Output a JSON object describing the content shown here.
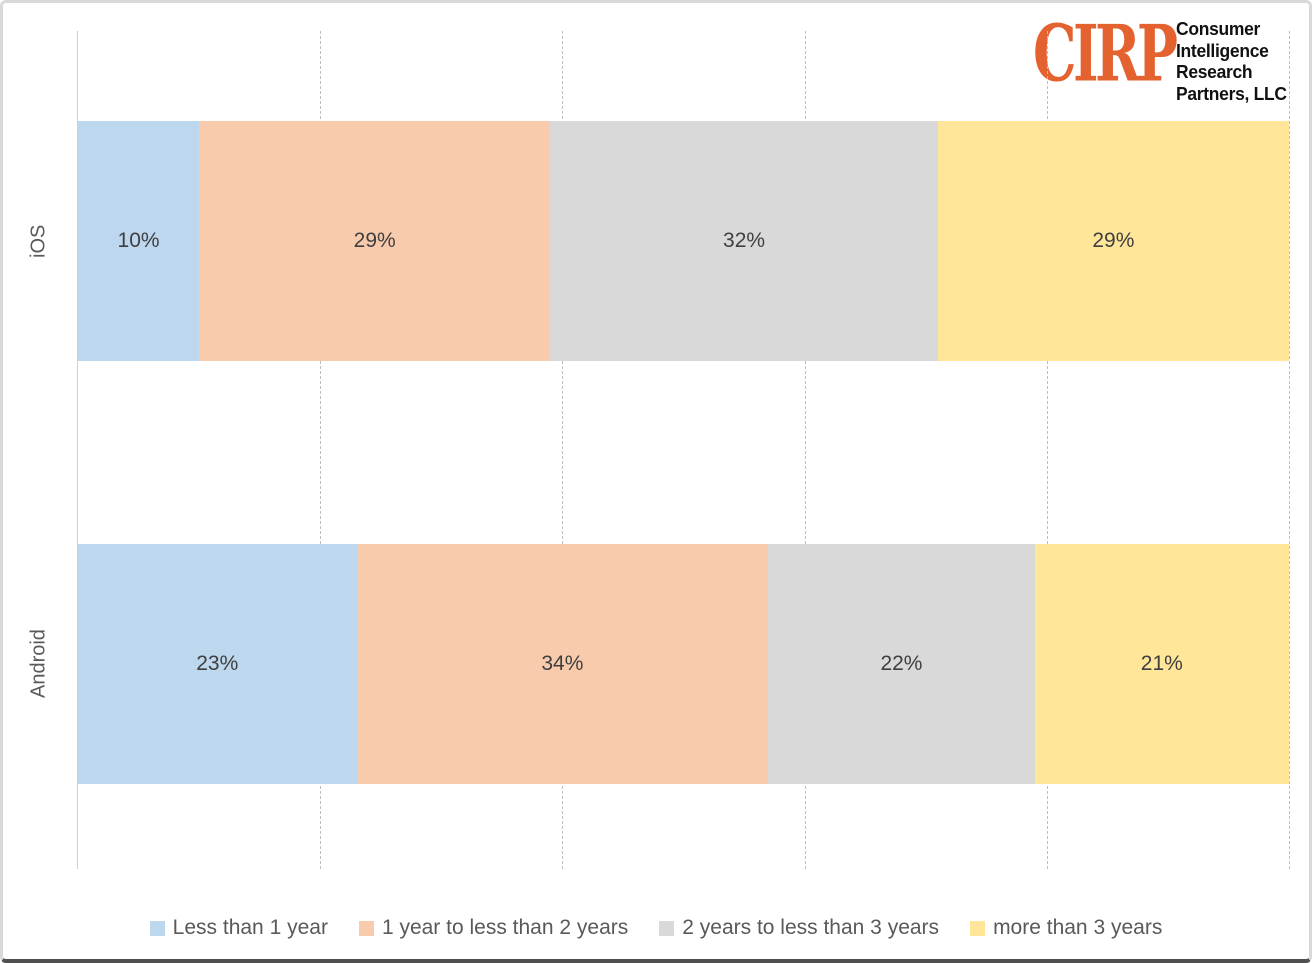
{
  "logo": {
    "brand": "CIRP",
    "brand_color": "#E4622F",
    "org_lines": [
      "Consumer",
      "Intelligence",
      "Research",
      "Partners, LLC"
    ]
  },
  "chart_data": {
    "type": "bar",
    "orientation": "horizontal_stacked",
    "categories": [
      "iOS",
      "Android"
    ],
    "series": [
      {
        "name": "Less than 1 year",
        "color": "#BDD7EE",
        "values": [
          10,
          23
        ]
      },
      {
        "name": "1 year to less than 2 years",
        "color": "#F8CBAD",
        "values": [
          29,
          34
        ]
      },
      {
        "name": "2 years to less than 3 years",
        "color": "#D9D9D9",
        "values": [
          32,
          22
        ]
      },
      {
        "name": "more than 3 years",
        "color": "#FFE699",
        "values": [
          29,
          21
        ]
      }
    ],
    "value_label_suffix": "%",
    "xlim": [
      0,
      100
    ],
    "gridlines_pct": [
      20,
      40,
      60,
      80,
      100
    ],
    "grid_style": "dashed-vertical",
    "legend_position": "bottom",
    "axis_line_side": "left"
  }
}
